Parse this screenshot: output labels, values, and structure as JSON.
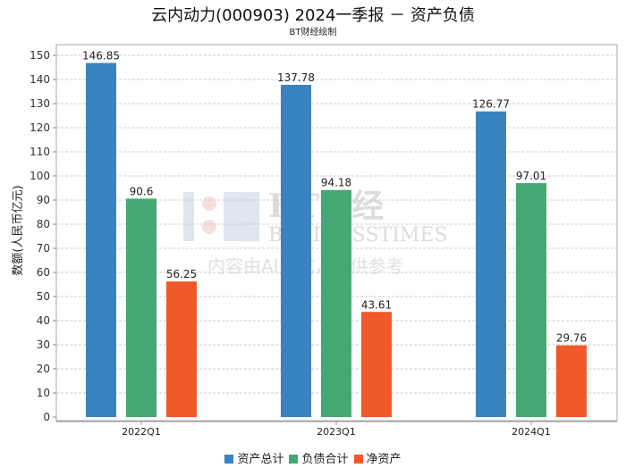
{
  "title": "云内动力(000903) 2024一季报 － 资产负债",
  "subtitle": "BT财经绘制",
  "watermark": {
    "line1": "BT财经",
    "line2": "BUSINESSTIMES",
    "line3": "内容由AI生成，仅供参考"
  },
  "chart_data": {
    "type": "bar",
    "categories": [
      "2022Q1",
      "2023Q1",
      "2024Q1"
    ],
    "series": [
      {
        "name": "资产总计",
        "values": [
          146.85,
          137.78,
          126.77
        ],
        "color": "#3a83c1"
      },
      {
        "name": "负债合计",
        "values": [
          90.6,
          94.18,
          97.01
        ],
        "color": "#45a874"
      },
      {
        "name": "净资产",
        "values": [
          56.25,
          43.61,
          29.76
        ],
        "color": "#f05a28"
      }
    ],
    "ylabel": "数额(人民币亿元)",
    "ylim": [
      0,
      150
    ],
    "yticks": [
      0,
      10,
      20,
      30,
      40,
      50,
      60,
      70,
      80,
      90,
      100,
      110,
      120,
      130,
      140,
      150
    ],
    "grid": true,
    "legend": "bottom"
  }
}
